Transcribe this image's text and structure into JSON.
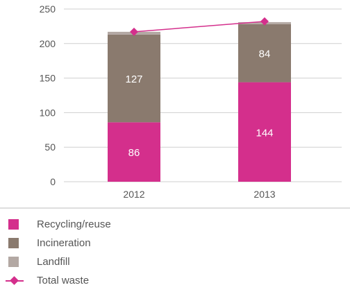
{
  "chart_data": {
    "type": "bar",
    "stacked": true,
    "categories": [
      "2012",
      "2013"
    ],
    "series": [
      {
        "name": "Recycling/reuse",
        "values": [
          86,
          144
        ],
        "color": "#d42f8c"
      },
      {
        "name": "Incineration",
        "values": [
          127,
          84
        ],
        "color": "#8a7a6e"
      },
      {
        "name": "Landfill",
        "values": [
          4,
          3
        ],
        "color": "#b3a8a3"
      }
    ],
    "line_series": {
      "name": "Total waste",
      "values": [
        217,
        232
      ],
      "color": "#d42f8c",
      "marker": "diamond"
    },
    "y_ticks": [
      "0",
      "50",
      "100",
      "150",
      "200",
      "250"
    ],
    "ylim": [
      0,
      250
    ],
    "grid": true,
    "legend_position": "bottom"
  }
}
